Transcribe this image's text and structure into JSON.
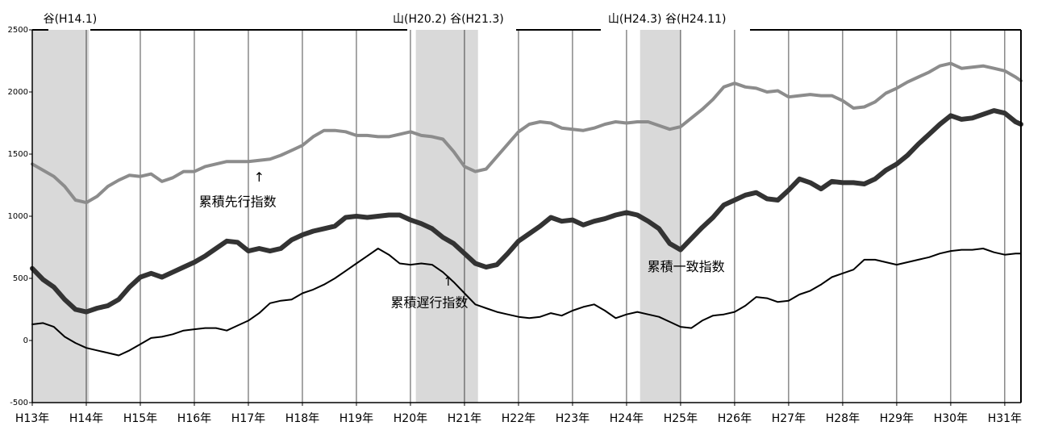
{
  "chart_data": {
    "type": "line",
    "title": "",
    "xlabel": "",
    "ylabel": "",
    "x_range": [
      13.0,
      31.3
    ],
    "ylim": [
      -500,
      2500
    ],
    "yticks": [
      -500,
      0,
      500,
      1000,
      1500,
      2000,
      2500
    ],
    "xticks": [
      {
        "x": 13,
        "label": "H13年"
      },
      {
        "x": 14,
        "label": "H14年"
      },
      {
        "x": 15,
        "label": "H15年"
      },
      {
        "x": 16,
        "label": "H16年"
      },
      {
        "x": 17,
        "label": "H17年"
      },
      {
        "x": 18,
        "label": "H18年"
      },
      {
        "x": 19,
        "label": "H19年"
      },
      {
        "x": 20,
        "label": "H20年"
      },
      {
        "x": 21,
        "label": "H21年"
      },
      {
        "x": 22,
        "label": "H22年"
      },
      {
        "x": 23,
        "label": "H23年"
      },
      {
        "x": 24,
        "label": "H24年"
      },
      {
        "x": 25,
        "label": "H25年"
      },
      {
        "x": 26,
        "label": "H26年"
      },
      {
        "x": 27,
        "label": "H27年"
      },
      {
        "x": 28,
        "label": "H28年"
      },
      {
        "x": 29,
        "label": "H29年"
      },
      {
        "x": 30,
        "label": "H30年"
      },
      {
        "x": 31,
        "label": "H31年"
      }
    ],
    "recessions": [
      {
        "start": 13.0,
        "end": 14.05,
        "label": "谷(H14.1)",
        "label_x": 13.7
      },
      {
        "start": 20.1,
        "end": 21.25,
        "label": "山(H20.2) 谷(H21.3)",
        "label_x": 20.7
      },
      {
        "start": 24.25,
        "end": 25.0,
        "label": "山(H24.3) 谷(H24.11)",
        "label_x": 24.75
      }
    ],
    "series": [
      {
        "name": "累積先行指数",
        "color": "#8c8c8c",
        "width": 4,
        "points": [
          [
            13.0,
            1420
          ],
          [
            13.2,
            1370
          ],
          [
            13.4,
            1320
          ],
          [
            13.6,
            1240
          ],
          [
            13.8,
            1130
          ],
          [
            14.0,
            1110
          ],
          [
            14.2,
            1160
          ],
          [
            14.4,
            1240
          ],
          [
            14.6,
            1290
          ],
          [
            14.8,
            1330
          ],
          [
            15.0,
            1320
          ],
          [
            15.2,
            1340
          ],
          [
            15.4,
            1280
          ],
          [
            15.6,
            1310
          ],
          [
            15.8,
            1360
          ],
          [
            16.0,
            1360
          ],
          [
            16.2,
            1400
          ],
          [
            16.4,
            1420
          ],
          [
            16.6,
            1440
          ],
          [
            16.8,
            1440
          ],
          [
            17.0,
            1440
          ],
          [
            17.2,
            1450
          ],
          [
            17.4,
            1460
          ],
          [
            17.6,
            1490
          ],
          [
            17.8,
            1530
          ],
          [
            18.0,
            1570
          ],
          [
            18.2,
            1640
          ],
          [
            18.4,
            1690
          ],
          [
            18.6,
            1690
          ],
          [
            18.8,
            1680
          ],
          [
            19.0,
            1650
          ],
          [
            19.2,
            1650
          ],
          [
            19.4,
            1640
          ],
          [
            19.6,
            1640
          ],
          [
            19.8,
            1660
          ],
          [
            20.0,
            1680
          ],
          [
            20.2,
            1650
          ],
          [
            20.4,
            1640
          ],
          [
            20.6,
            1620
          ],
          [
            20.8,
            1520
          ],
          [
            21.0,
            1400
          ],
          [
            21.2,
            1360
          ],
          [
            21.4,
            1380
          ],
          [
            21.6,
            1480
          ],
          [
            21.8,
            1580
          ],
          [
            22.0,
            1680
          ],
          [
            22.2,
            1740
          ],
          [
            22.4,
            1760
          ],
          [
            22.6,
            1750
          ],
          [
            22.8,
            1710
          ],
          [
            23.0,
            1700
          ],
          [
            23.2,
            1690
          ],
          [
            23.4,
            1710
          ],
          [
            23.6,
            1740
          ],
          [
            23.8,
            1760
          ],
          [
            24.0,
            1750
          ],
          [
            24.2,
            1760
          ],
          [
            24.4,
            1760
          ],
          [
            24.6,
            1730
          ],
          [
            24.8,
            1700
          ],
          [
            25.0,
            1720
          ],
          [
            25.2,
            1790
          ],
          [
            25.4,
            1860
          ],
          [
            25.6,
            1940
          ],
          [
            25.8,
            2040
          ],
          [
            26.0,
            2070
          ],
          [
            26.2,
            2040
          ],
          [
            26.4,
            2030
          ],
          [
            26.6,
            2000
          ],
          [
            26.8,
            2010
          ],
          [
            27.0,
            1960
          ],
          [
            27.2,
            1970
          ],
          [
            27.4,
            1980
          ],
          [
            27.6,
            1970
          ],
          [
            27.8,
            1970
          ],
          [
            28.0,
            1930
          ],
          [
            28.2,
            1870
          ],
          [
            28.4,
            1880
          ],
          [
            28.6,
            1920
          ],
          [
            28.8,
            1990
          ],
          [
            29.0,
            2030
          ],
          [
            29.2,
            2080
          ],
          [
            29.4,
            2120
          ],
          [
            29.6,
            2160
          ],
          [
            29.8,
            2210
          ],
          [
            30.0,
            2230
          ],
          [
            30.2,
            2190
          ],
          [
            30.4,
            2200
          ],
          [
            30.6,
            2210
          ],
          [
            30.8,
            2190
          ],
          [
            31.0,
            2170
          ],
          [
            31.2,
            2120
          ],
          [
            31.3,
            2090
          ]
        ]
      },
      {
        "name": "累積一致指数",
        "color": "#333333",
        "width": 6,
        "points": [
          [
            13.0,
            580
          ],
          [
            13.2,
            490
          ],
          [
            13.4,
            430
          ],
          [
            13.6,
            330
          ],
          [
            13.8,
            250
          ],
          [
            14.0,
            230
          ],
          [
            14.2,
            260
          ],
          [
            14.4,
            280
          ],
          [
            14.6,
            330
          ],
          [
            14.8,
            430
          ],
          [
            15.0,
            510
          ],
          [
            15.2,
            540
          ],
          [
            15.4,
            510
          ],
          [
            15.6,
            550
          ],
          [
            15.8,
            590
          ],
          [
            16.0,
            630
          ],
          [
            16.2,
            680
          ],
          [
            16.4,
            740
          ],
          [
            16.6,
            800
          ],
          [
            16.8,
            790
          ],
          [
            17.0,
            720
          ],
          [
            17.2,
            740
          ],
          [
            17.4,
            720
          ],
          [
            17.6,
            740
          ],
          [
            17.8,
            810
          ],
          [
            18.0,
            850
          ],
          [
            18.2,
            880
          ],
          [
            18.4,
            900
          ],
          [
            18.6,
            920
          ],
          [
            18.8,
            990
          ],
          [
            19.0,
            1000
          ],
          [
            19.2,
            990
          ],
          [
            19.4,
            1000
          ],
          [
            19.6,
            1010
          ],
          [
            19.8,
            1010
          ],
          [
            20.0,
            970
          ],
          [
            20.2,
            940
          ],
          [
            20.4,
            900
          ],
          [
            20.6,
            830
          ],
          [
            20.8,
            780
          ],
          [
            21.0,
            700
          ],
          [
            21.2,
            620
          ],
          [
            21.4,
            590
          ],
          [
            21.6,
            610
          ],
          [
            21.8,
            700
          ],
          [
            22.0,
            800
          ],
          [
            22.2,
            860
          ],
          [
            22.4,
            920
          ],
          [
            22.6,
            990
          ],
          [
            22.8,
            960
          ],
          [
            23.0,
            970
          ],
          [
            23.2,
            930
          ],
          [
            23.4,
            960
          ],
          [
            23.6,
            980
          ],
          [
            23.8,
            1010
          ],
          [
            24.0,
            1030
          ],
          [
            24.2,
            1010
          ],
          [
            24.4,
            960
          ],
          [
            24.6,
            900
          ],
          [
            24.8,
            780
          ],
          [
            25.0,
            730
          ],
          [
            25.2,
            820
          ],
          [
            25.4,
            910
          ],
          [
            25.6,
            990
          ],
          [
            25.8,
            1090
          ],
          [
            26.0,
            1130
          ],
          [
            26.2,
            1170
          ],
          [
            26.4,
            1190
          ],
          [
            26.6,
            1140
          ],
          [
            26.8,
            1130
          ],
          [
            27.0,
            1210
          ],
          [
            27.2,
            1300
          ],
          [
            27.4,
            1270
          ],
          [
            27.6,
            1220
          ],
          [
            27.8,
            1280
          ],
          [
            28.0,
            1270
          ],
          [
            28.2,
            1270
          ],
          [
            28.4,
            1260
          ],
          [
            28.6,
            1300
          ],
          [
            28.8,
            1370
          ],
          [
            29.0,
            1420
          ],
          [
            29.2,
            1490
          ],
          [
            29.4,
            1580
          ],
          [
            29.6,
            1660
          ],
          [
            29.8,
            1740
          ],
          [
            30.0,
            1810
          ],
          [
            30.2,
            1780
          ],
          [
            30.4,
            1790
          ],
          [
            30.6,
            1820
          ],
          [
            30.8,
            1850
          ],
          [
            31.0,
            1830
          ],
          [
            31.2,
            1760
          ],
          [
            31.3,
            1740
          ]
        ]
      },
      {
        "name": "累積遅行指数",
        "color": "#000000",
        "width": 2,
        "points": [
          [
            13.0,
            130
          ],
          [
            13.2,
            140
          ],
          [
            13.4,
            110
          ],
          [
            13.6,
            30
          ],
          [
            13.8,
            -20
          ],
          [
            14.0,
            -60
          ],
          [
            14.2,
            -80
          ],
          [
            14.4,
            -100
          ],
          [
            14.6,
            -120
          ],
          [
            14.8,
            -80
          ],
          [
            15.0,
            -30
          ],
          [
            15.2,
            20
          ],
          [
            15.4,
            30
          ],
          [
            15.6,
            50
          ],
          [
            15.8,
            80
          ],
          [
            16.0,
            90
          ],
          [
            16.2,
            100
          ],
          [
            16.4,
            100
          ],
          [
            16.6,
            80
          ],
          [
            16.8,
            120
          ],
          [
            17.0,
            160
          ],
          [
            17.2,
            220
          ],
          [
            17.4,
            300
          ],
          [
            17.6,
            320
          ],
          [
            17.8,
            330
          ],
          [
            18.0,
            380
          ],
          [
            18.2,
            410
          ],
          [
            18.4,
            450
          ],
          [
            18.6,
            500
          ],
          [
            18.8,
            560
          ],
          [
            19.0,
            620
          ],
          [
            19.2,
            680
          ],
          [
            19.4,
            740
          ],
          [
            19.6,
            690
          ],
          [
            19.8,
            620
          ],
          [
            20.0,
            610
          ],
          [
            20.2,
            620
          ],
          [
            20.4,
            610
          ],
          [
            20.6,
            550
          ],
          [
            20.8,
            470
          ],
          [
            21.0,
            380
          ],
          [
            21.2,
            290
          ],
          [
            21.4,
            260
          ],
          [
            21.6,
            230
          ],
          [
            21.8,
            210
          ],
          [
            22.0,
            190
          ],
          [
            22.2,
            180
          ],
          [
            22.4,
            190
          ],
          [
            22.6,
            220
          ],
          [
            22.8,
            200
          ],
          [
            23.0,
            240
          ],
          [
            23.2,
            270
          ],
          [
            23.4,
            290
          ],
          [
            23.6,
            240
          ],
          [
            23.8,
            180
          ],
          [
            24.0,
            210
          ],
          [
            24.2,
            230
          ],
          [
            24.4,
            210
          ],
          [
            24.6,
            190
          ],
          [
            24.8,
            150
          ],
          [
            25.0,
            110
          ],
          [
            25.2,
            100
          ],
          [
            25.4,
            160
          ],
          [
            25.6,
            200
          ],
          [
            25.8,
            210
          ],
          [
            26.0,
            230
          ],
          [
            26.2,
            280
          ],
          [
            26.4,
            350
          ],
          [
            26.6,
            340
          ],
          [
            26.8,
            310
          ],
          [
            27.0,
            320
          ],
          [
            27.2,
            370
          ],
          [
            27.4,
            400
          ],
          [
            27.6,
            450
          ],
          [
            27.8,
            510
          ],
          [
            28.0,
            540
          ],
          [
            28.2,
            570
          ],
          [
            28.4,
            650
          ],
          [
            28.6,
            650
          ],
          [
            28.8,
            630
          ],
          [
            29.0,
            610
          ],
          [
            29.2,
            630
          ],
          [
            29.4,
            650
          ],
          [
            29.6,
            670
          ],
          [
            29.8,
            700
          ],
          [
            30.0,
            720
          ],
          [
            30.2,
            730
          ],
          [
            30.4,
            730
          ],
          [
            30.6,
            740
          ],
          [
            30.8,
            710
          ],
          [
            31.0,
            690
          ],
          [
            31.2,
            700
          ],
          [
            31.3,
            700
          ]
        ]
      }
    ],
    "annotations": [
      {
        "text": "↑",
        "x": 17.2,
        "y": 1280
      },
      {
        "text": "累積先行指数",
        "x": 16.8,
        "y": 1080
      },
      {
        "text": "累積一致指数",
        "x": 25.1,
        "y": 560
      },
      {
        "text": "↑",
        "x": 20.7,
        "y": 440
      },
      {
        "text": "累積遅行指数",
        "x": 20.35,
        "y": 270
      }
    ]
  }
}
